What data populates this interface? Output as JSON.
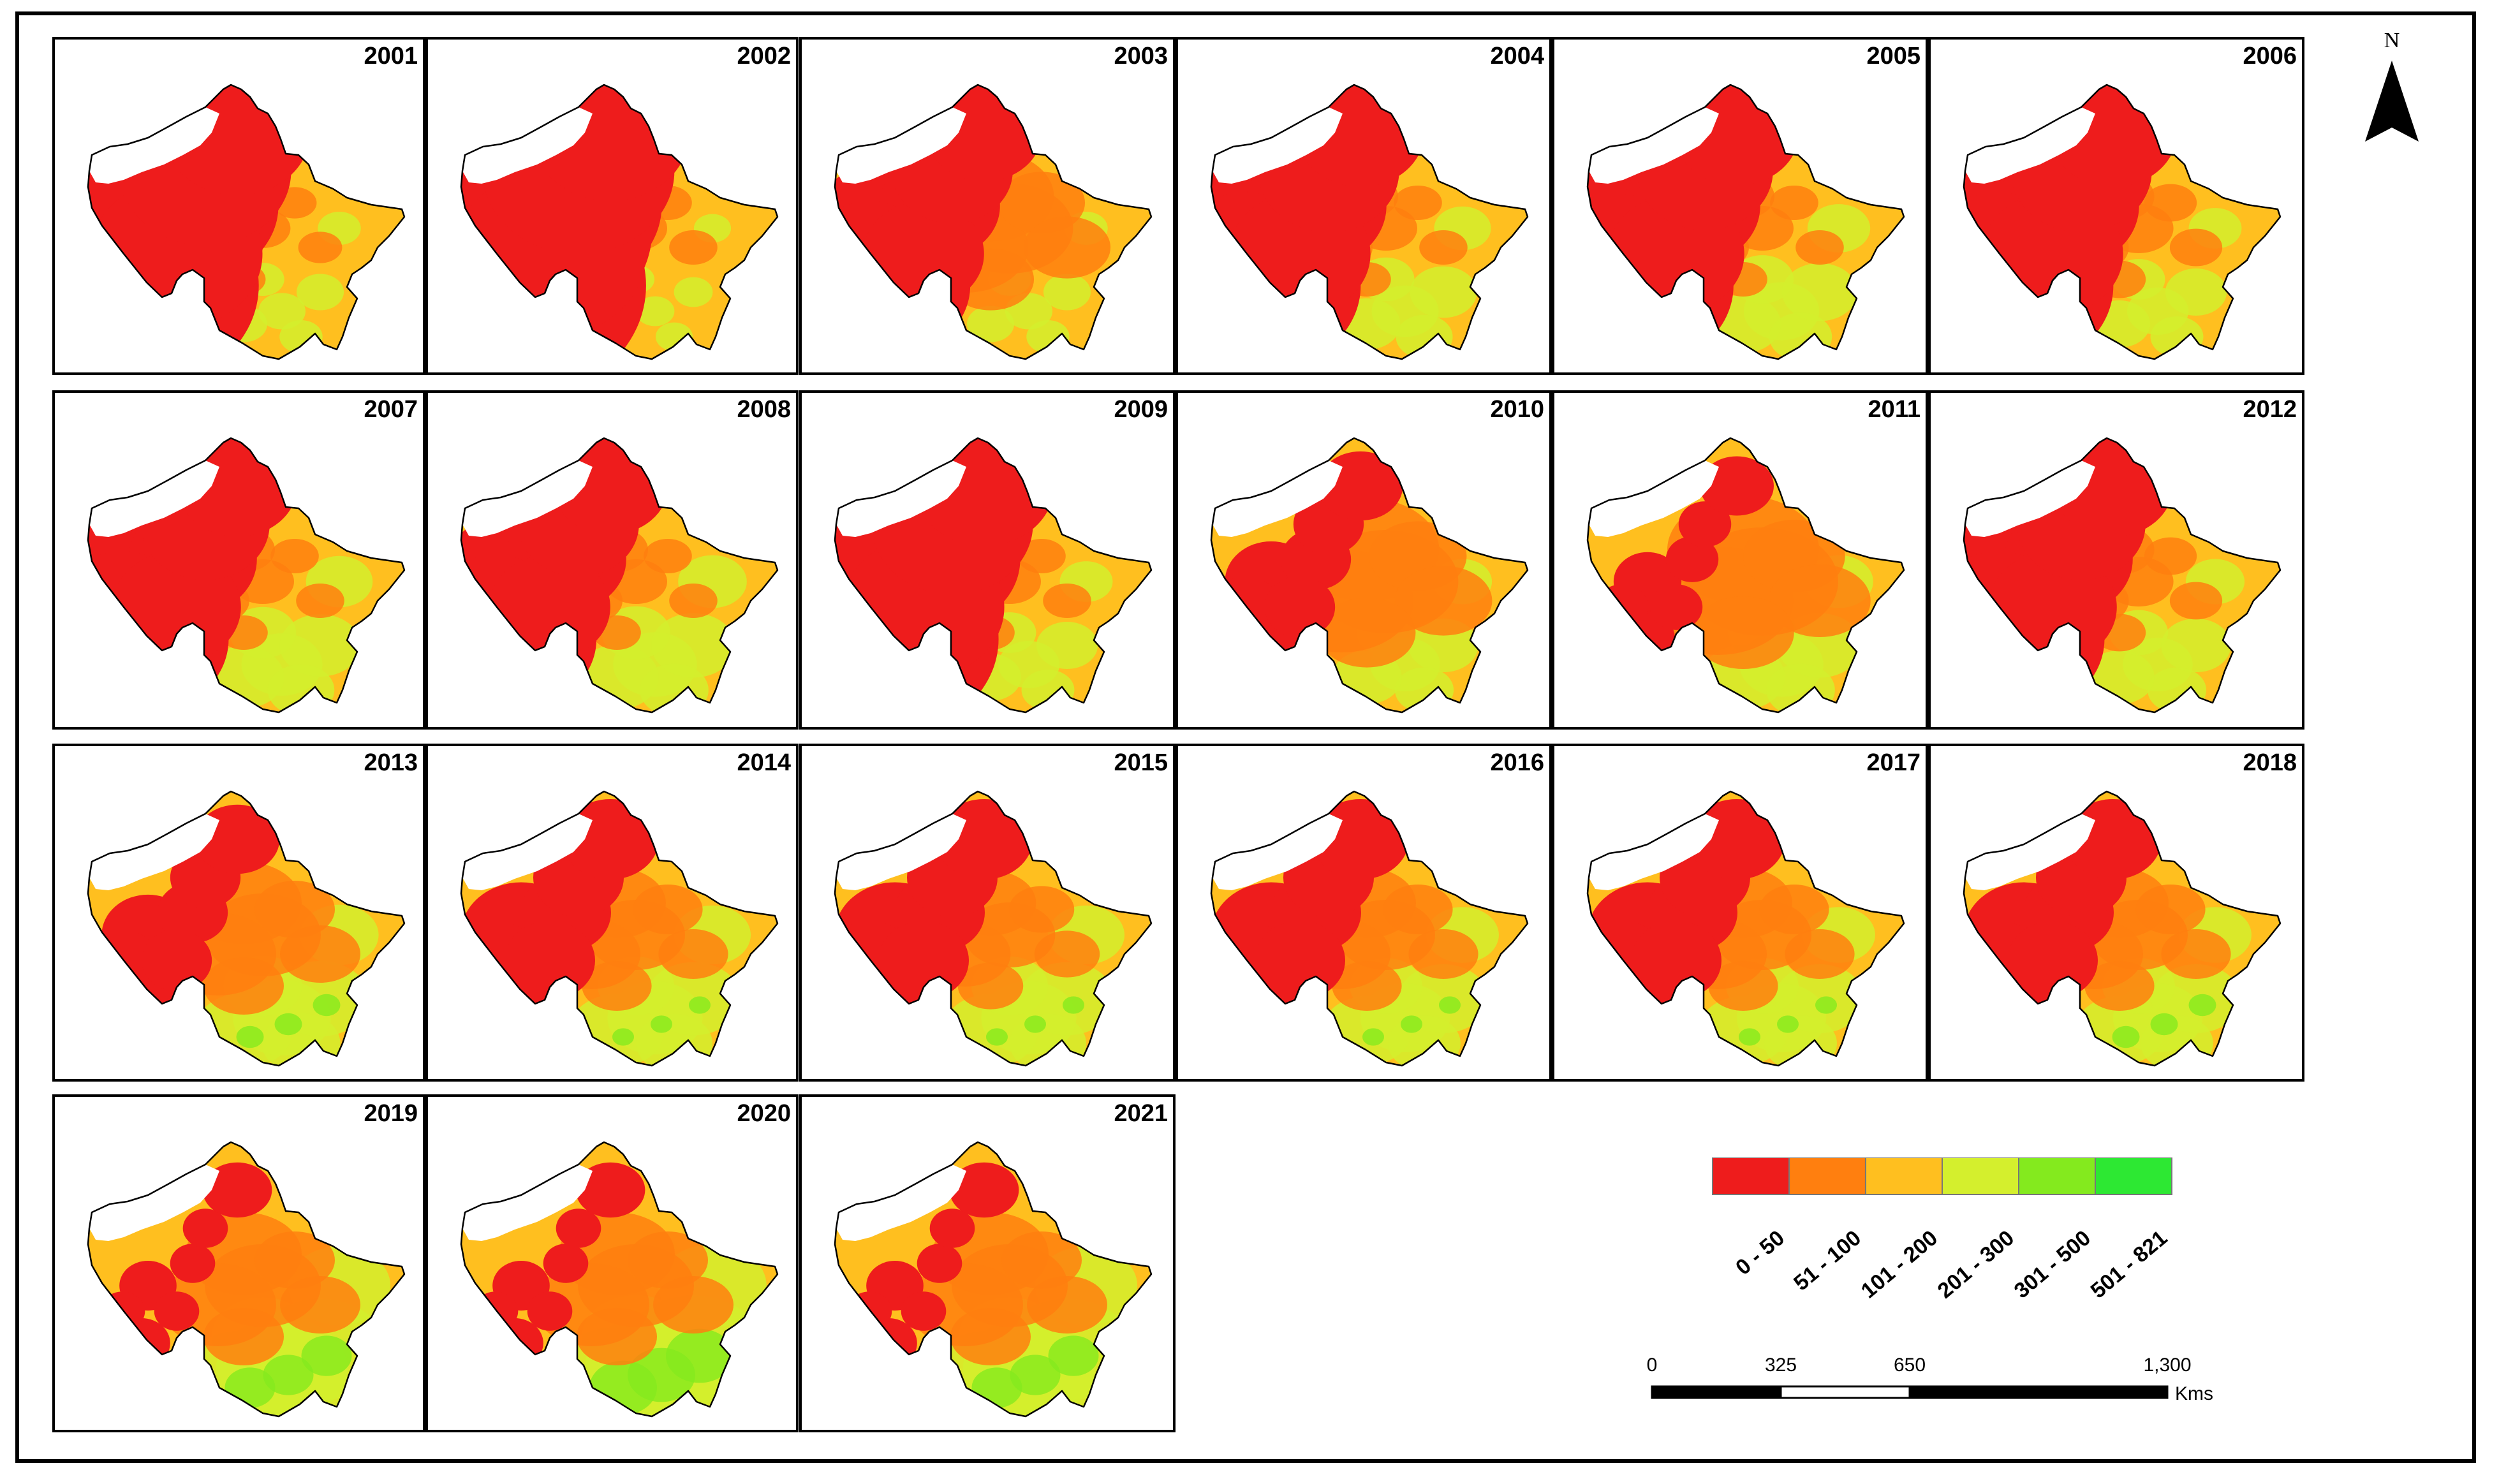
{
  "panels": [
    {
      "year": "2001",
      "mix": [
        0.62,
        0.08,
        0.25,
        0.05,
        0,
        0
      ]
    },
    {
      "year": "2002",
      "mix": [
        0.7,
        0.1,
        0.18,
        0.02,
        0,
        0
      ]
    },
    {
      "year": "2003",
      "mix": [
        0.42,
        0.28,
        0.25,
        0.05,
        0,
        0
      ]
    },
    {
      "year": "2004",
      "mix": [
        0.5,
        0.1,
        0.28,
        0.12,
        0,
        0
      ]
    },
    {
      "year": "2005",
      "mix": [
        0.48,
        0.1,
        0.27,
        0.15,
        0,
        0
      ]
    },
    {
      "year": "2006",
      "mix": [
        0.5,
        0.12,
        0.28,
        0.1,
        0,
        0
      ]
    },
    {
      "year": "2007",
      "mix": [
        0.45,
        0.1,
        0.28,
        0.17,
        0,
        0
      ]
    },
    {
      "year": "2008",
      "mix": [
        0.42,
        0.1,
        0.3,
        0.18,
        0,
        0
      ]
    },
    {
      "year": "2009",
      "mix": [
        0.58,
        0.1,
        0.22,
        0.1,
        0,
        0
      ]
    },
    {
      "year": "2010",
      "mix": [
        0.22,
        0.33,
        0.32,
        0.13,
        0,
        0
      ]
    },
    {
      "year": "2011",
      "mix": [
        0.15,
        0.35,
        0.32,
        0.18,
        0,
        0
      ]
    },
    {
      "year": "2012",
      "mix": [
        0.45,
        0.12,
        0.3,
        0.13,
        0,
        0
      ]
    },
    {
      "year": "2013",
      "mix": [
        0.22,
        0.25,
        0.3,
        0.2,
        0.03,
        0
      ]
    },
    {
      "year": "2014",
      "mix": [
        0.3,
        0.2,
        0.28,
        0.2,
        0.02,
        0
      ]
    },
    {
      "year": "2015",
      "mix": [
        0.3,
        0.18,
        0.3,
        0.2,
        0.02,
        0
      ]
    },
    {
      "year": "2016",
      "mix": [
        0.3,
        0.2,
        0.3,
        0.18,
        0.02,
        0
      ]
    },
    {
      "year": "2017",
      "mix": [
        0.3,
        0.2,
        0.3,
        0.18,
        0.02,
        0
      ]
    },
    {
      "year": "2018",
      "mix": [
        0.3,
        0.2,
        0.3,
        0.17,
        0.03,
        0
      ]
    },
    {
      "year": "2019",
      "mix": [
        0.12,
        0.25,
        0.28,
        0.28,
        0.07,
        0
      ]
    },
    {
      "year": "2020",
      "mix": [
        0.12,
        0.25,
        0.25,
        0.28,
        0.1,
        0
      ]
    },
    {
      "year": "2021",
      "mix": [
        0.12,
        0.25,
        0.28,
        0.28,
        0.07,
        0
      ]
    }
  ],
  "legend": {
    "classes": [
      {
        "label": "0 - 50",
        "color": "#ee1c1c"
      },
      {
        "label": "51 - 100",
        "color": "#ff7f0f"
      },
      {
        "label": "101 - 200",
        "color": "#ffbf1f"
      },
      {
        "label": "201 - 300",
        "color": "#d4ef2d"
      },
      {
        "label": "301 - 500",
        "color": "#84ea1e"
      },
      {
        "label": "501 - 821",
        "color": "#2de833"
      }
    ]
  },
  "north_arrow": {
    "label": "N"
  },
  "scale_bar": {
    "ticks": [
      "0",
      "325",
      "650",
      "1,300"
    ],
    "unit": "Kms"
  }
}
